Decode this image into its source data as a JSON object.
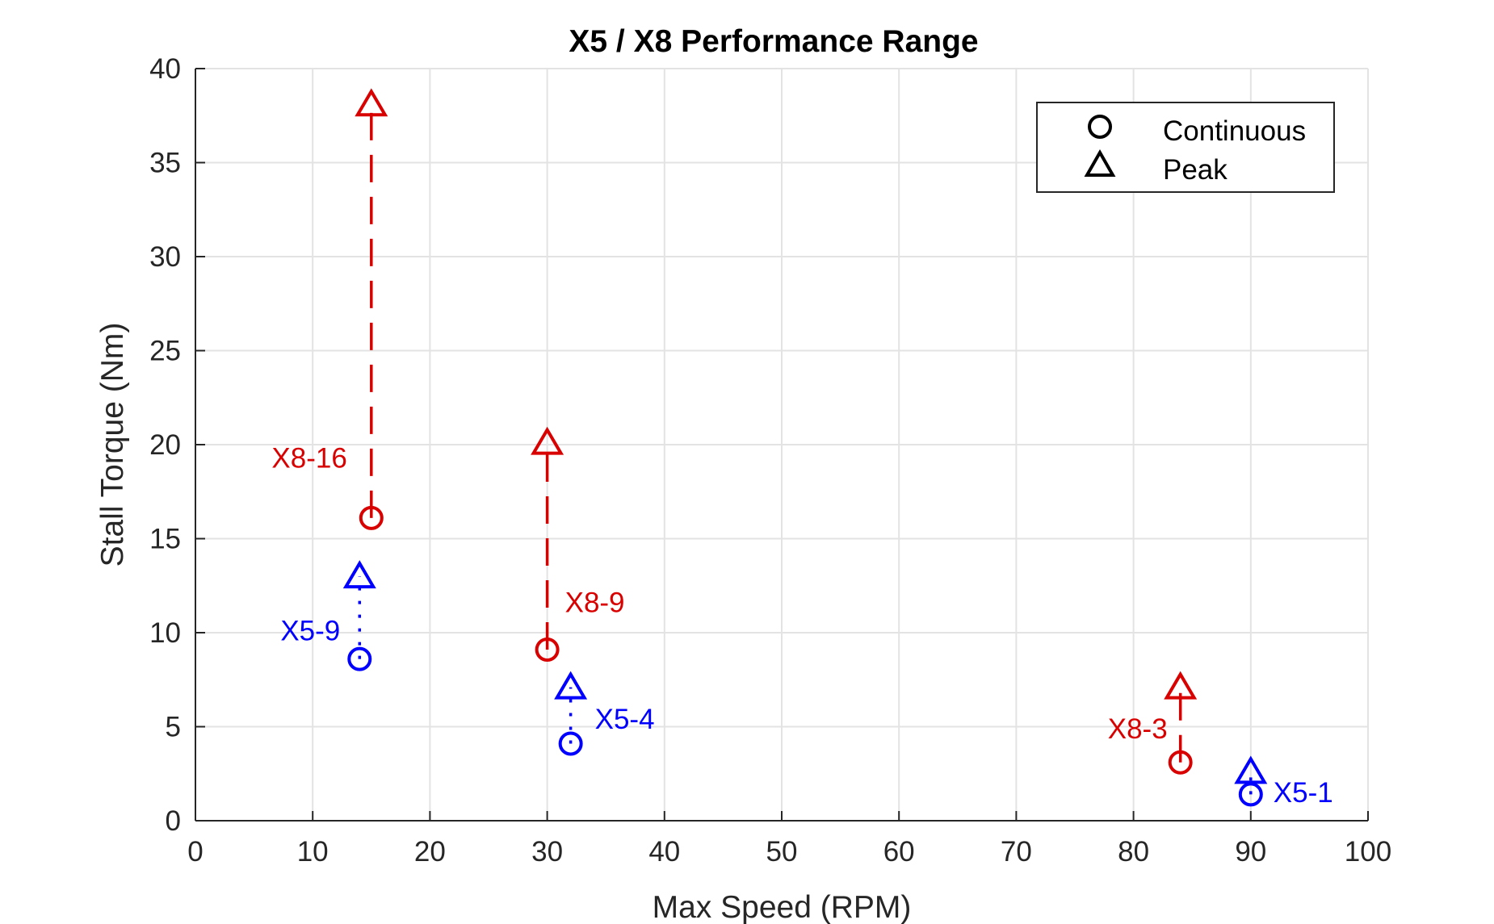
{
  "chart_data": {
    "type": "scatter",
    "title": "X5 / X8 Performance Range",
    "xlabel": "Max Speed (RPM)",
    "ylabel": "Stall Torque (Nm)",
    "xlim": [
      0,
      100
    ],
    "ylim": [
      0,
      40
    ],
    "xticks": [
      0,
      10,
      20,
      30,
      40,
      50,
      60,
      70,
      80,
      90,
      100
    ],
    "yticks": [
      0,
      5,
      10,
      15,
      20,
      25,
      30,
      35,
      40
    ],
    "grid": true,
    "legend": {
      "placement": "top-right",
      "entries": [
        {
          "label": "Continuous",
          "marker": "circle"
        },
        {
          "label": "Peak",
          "marker": "triangle"
        }
      ]
    },
    "colors": {
      "X8": "#d90000",
      "X5": "#0000ff"
    },
    "points": [
      {
        "label": "X8-16",
        "family": "X8",
        "x": 15,
        "continuous": 16.1,
        "peak": 38.1
      },
      {
        "label": "X8-9",
        "family": "X8",
        "x": 30,
        "continuous": 9.1,
        "peak": 20.1
      },
      {
        "label": "X8-3",
        "family": "X8",
        "x": 84,
        "continuous": 3.1,
        "peak": 7.1
      },
      {
        "label": "X5-9",
        "family": "X5",
        "x": 14,
        "continuous": 8.6,
        "peak": 13.0
      },
      {
        "label": "X5-4",
        "family": "X5",
        "x": 32,
        "continuous": 4.1,
        "peak": 7.1
      },
      {
        "label": "X5-1",
        "family": "X5",
        "x": 90,
        "continuous": 1.4,
        "peak": 2.6
      }
    ]
  }
}
